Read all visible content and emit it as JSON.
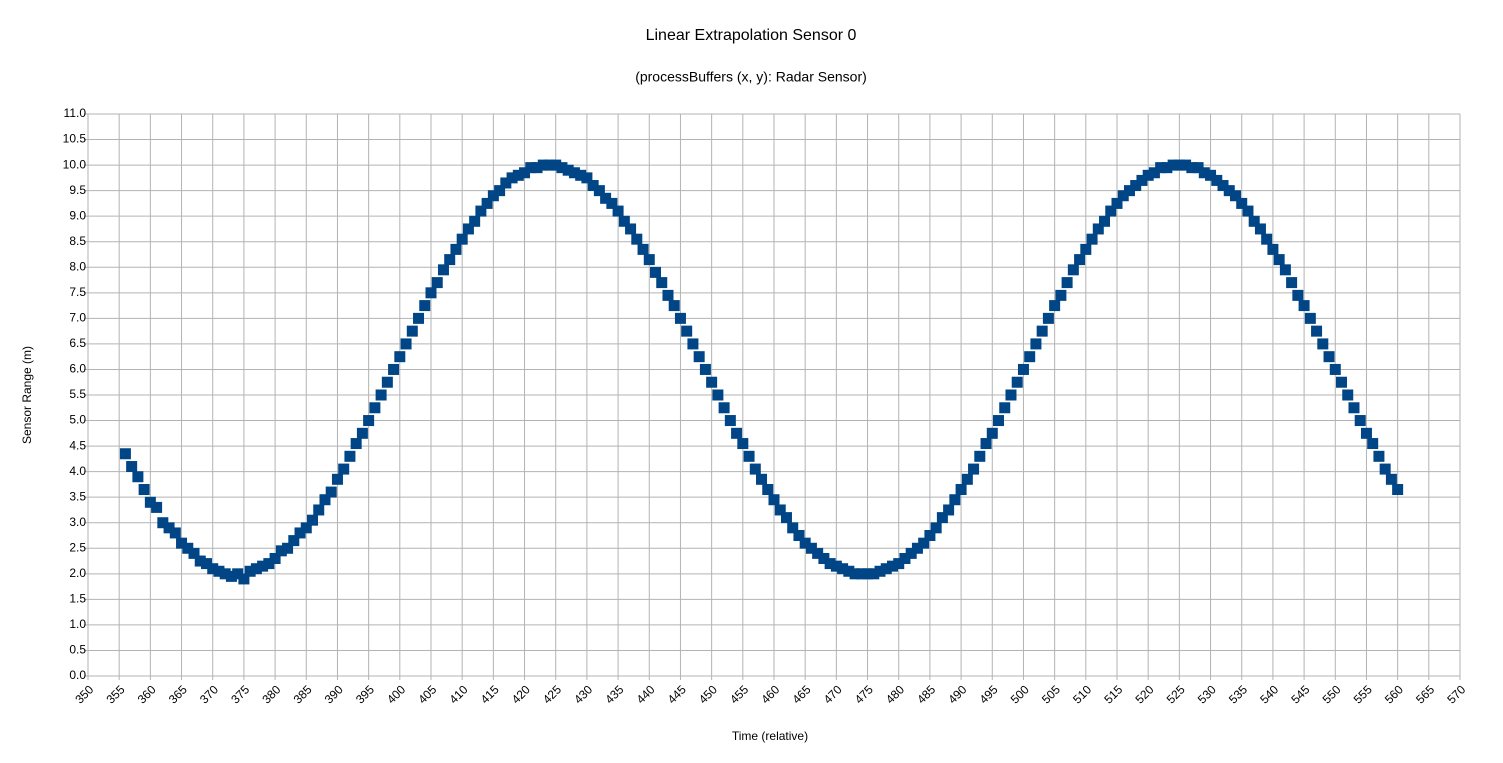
{
  "chart_data": {
    "type": "scatter",
    "title": "Linear Extrapolation Sensor 0",
    "subtitle": "(processBuffers (x, y): Radar Sensor)",
    "x_label": "Time (relative)",
    "y_label": "Sensor Range (m)",
    "x": [
      356,
      357,
      358,
      359,
      360,
      361,
      362,
      363,
      364,
      365,
      366,
      367,
      368,
      369,
      370,
      371,
      372,
      373,
      374,
      375,
      376,
      377,
      378,
      379,
      380,
      381,
      382,
      383,
      384,
      385,
      386,
      387,
      388,
      389,
      390,
      391,
      392,
      393,
      394,
      395,
      396,
      397,
      398,
      399,
      400,
      401,
      402,
      403,
      404,
      405,
      406,
      407,
      408,
      409,
      410,
      411,
      412,
      413,
      414,
      415,
      416,
      417,
      418,
      419,
      420,
      421,
      422,
      423,
      424,
      425,
      426,
      427,
      428,
      429,
      430,
      431,
      432,
      433,
      434,
      435,
      436,
      437,
      438,
      439,
      440,
      441,
      442,
      443,
      444,
      445,
      446,
      447,
      448,
      449,
      450,
      451,
      452,
      453,
      454,
      455,
      456,
      457,
      458,
      459,
      460,
      461,
      462,
      463,
      464,
      465,
      466,
      467,
      468,
      469,
      470,
      471,
      472,
      473,
      474,
      475,
      476,
      477,
      478,
      479,
      480,
      481,
      482,
      483,
      484,
      485,
      486,
      487,
      488,
      489,
      490,
      491,
      492,
      493,
      494,
      495,
      496,
      497,
      498,
      499,
      500,
      501,
      502,
      503,
      504,
      505,
      506,
      507,
      508,
      509,
      510,
      511,
      512,
      513,
      514,
      515,
      516,
      517,
      518,
      519,
      520,
      521,
      522,
      523,
      524,
      525,
      526,
      527,
      528,
      529,
      530,
      531,
      532,
      533,
      534,
      535,
      536,
      537,
      538,
      539,
      540,
      541,
      542,
      543,
      544,
      545,
      546,
      547,
      548,
      549,
      550,
      551,
      552,
      553,
      554,
      555,
      556,
      557,
      558,
      559,
      560
    ],
    "series": [
      {
        "name": "Sensor 0",
        "color": "#004586",
        "values": [
          4.35,
          4.1,
          3.9,
          3.65,
          3.4,
          3.3,
          3.0,
          2.9,
          2.8,
          2.6,
          2.5,
          2.4,
          2.25,
          2.2,
          2.1,
          2.05,
          2.0,
          1.95,
          2.0,
          1.9,
          2.05,
          2.1,
          2.15,
          2.2,
          2.3,
          2.45,
          2.5,
          2.65,
          2.8,
          2.9,
          3.05,
          3.25,
          3.45,
          3.6,
          3.85,
          4.05,
          4.3,
          4.55,
          4.75,
          5.0,
          5.25,
          5.5,
          5.75,
          6.0,
          6.25,
          6.5,
          6.75,
          7.0,
          7.25,
          7.5,
          7.7,
          7.95,
          8.15,
          8.35,
          8.55,
          8.75,
          8.9,
          9.1,
          9.25,
          9.4,
          9.5,
          9.65,
          9.75,
          9.8,
          9.85,
          9.95,
          9.95,
          10.0,
          10.0,
          10.0,
          9.95,
          9.9,
          9.85,
          9.8,
          9.75,
          9.6,
          9.5,
          9.35,
          9.25,
          9.1,
          8.9,
          8.75,
          8.55,
          8.35,
          8.15,
          7.9,
          7.7,
          7.45,
          7.25,
          7.0,
          6.75,
          6.5,
          6.25,
          6.0,
          5.75,
          5.5,
          5.25,
          5.0,
          4.75,
          4.55,
          4.3,
          4.05,
          3.85,
          3.65,
          3.45,
          3.25,
          3.1,
          2.9,
          2.75,
          2.6,
          2.5,
          2.4,
          2.3,
          2.2,
          2.15,
          2.1,
          2.05,
          2.0,
          2.0,
          2.0,
          2.0,
          2.05,
          2.1,
          2.15,
          2.2,
          2.3,
          2.4,
          2.5,
          2.6,
          2.75,
          2.9,
          3.1,
          3.25,
          3.45,
          3.65,
          3.85,
          4.05,
          4.3,
          4.55,
          4.75,
          5.0,
          5.25,
          5.5,
          5.75,
          6.0,
          6.25,
          6.5,
          6.75,
          7.0,
          7.25,
          7.45,
          7.7,
          7.95,
          8.15,
          8.35,
          8.55,
          8.75,
          8.9,
          9.1,
          9.25,
          9.4,
          9.5,
          9.6,
          9.7,
          9.8,
          9.85,
          9.95,
          9.95,
          10.0,
          10.0,
          10.0,
          9.95,
          9.95,
          9.85,
          9.8,
          9.7,
          9.6,
          9.5,
          9.4,
          9.25,
          9.1,
          8.9,
          8.75,
          8.55,
          8.35,
          8.15,
          7.95,
          7.7,
          7.45,
          7.25,
          7.0,
          6.75,
          6.5,
          6.25,
          6.0,
          5.75,
          5.5,
          5.25,
          5.0,
          4.75,
          4.55,
          4.3,
          4.05,
          3.85,
          3.65
        ]
      }
    ],
    "xlim": [
      350,
      570
    ],
    "xticks": [
      350,
      355,
      360,
      365,
      370,
      375,
      380,
      385,
      390,
      395,
      400,
      405,
      410,
      415,
      420,
      425,
      430,
      435,
      440,
      445,
      450,
      455,
      460,
      465,
      470,
      475,
      480,
      485,
      490,
      495,
      500,
      505,
      510,
      515,
      520,
      525,
      530,
      535,
      540,
      545,
      550,
      555,
      560,
      565,
      570
    ],
    "ylim": [
      0,
      11
    ],
    "yticks": [
      {
        "value": 0,
        "label": "0.0"
      },
      0.5,
      {
        "value": 1,
        "label": "1.0"
      },
      1.5,
      {
        "value": 2,
        "label": "2.0"
      },
      2.5,
      {
        "value": 3,
        "label": "3.0"
      },
      3.5,
      {
        "value": 4,
        "label": "4.0"
      },
      4.5,
      {
        "value": 5,
        "label": "5.0"
      },
      5.5,
      {
        "value": 6,
        "label": "6.0"
      },
      6.5,
      {
        "value": 7,
        "label": "7.0"
      },
      7.5,
      {
        "value": 8,
        "label": "8.0"
      },
      8.5,
      {
        "value": 9,
        "label": "9.0"
      },
      9.5,
      {
        "value": 10,
        "label": "10.0"
      },
      10.5,
      {
        "value": 11,
        "label": "11.0"
      }
    ],
    "grid": true
  }
}
